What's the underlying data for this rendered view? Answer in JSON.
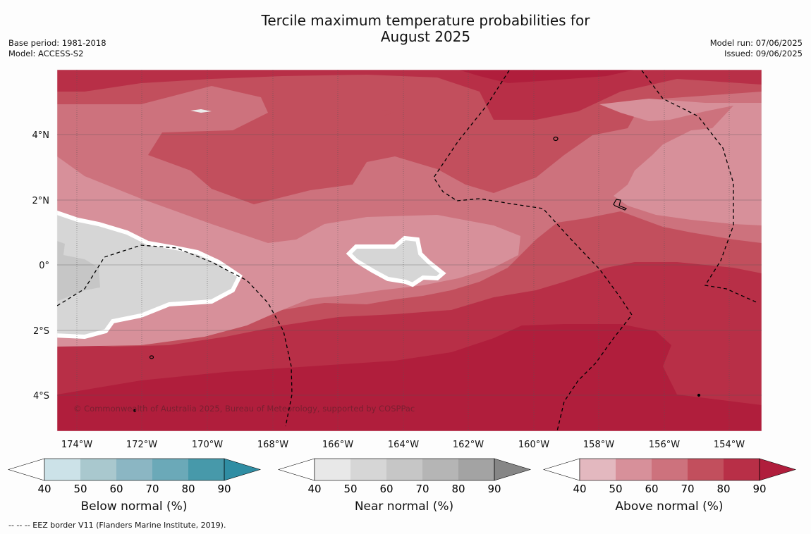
{
  "title_line1": "Tercile maximum temperature probabilities for",
  "title_line2": "August 2025",
  "base_period": "Base period: 1981-2018",
  "model": "Model: ACCESS-S2",
  "model_run": "Model run: 07/06/2025",
  "issued": "Issued: 09/06/2025",
  "copyright": "© Commonwealth of Australia 2025, Bureau of Meteorology, supported by COSPPac",
  "footer_note": "--  --  -- EEZ border V11 (Flanders Marine Institute, 2019).",
  "map": {
    "lon_labels": [
      "174°W",
      "172°W",
      "170°W",
      "168°W",
      "166°W",
      "164°W",
      "162°W",
      "160°W",
      "158°W",
      "156°W",
      "154°W"
    ],
    "lat_labels": [
      "4°N",
      "2°N",
      "0°",
      "2°S",
      "4°S"
    ]
  },
  "colorbars": [
    {
      "name": "below",
      "caption": "Below normal (%)",
      "ticks": [
        "40",
        "50",
        "60",
        "70",
        "80",
        "90"
      ],
      "colors": [
        "#ffffff",
        "#cce2e8",
        "#a9c8ce",
        "#8bb6c3",
        "#6ba9b8",
        "#4799aa",
        "#2f8da3"
      ]
    },
    {
      "name": "near",
      "caption": "Near normal (%)",
      "ticks": [
        "40",
        "50",
        "60",
        "70",
        "80",
        "90"
      ],
      "colors": [
        "#ffffff",
        "#e8e8e8",
        "#d6d6d6",
        "#c6c6c6",
        "#b5b5b5",
        "#a3a3a3",
        "#868686"
      ]
    },
    {
      "name": "above",
      "caption": "Above normal (%)",
      "ticks": [
        "40",
        "50",
        "60",
        "70",
        "80",
        "90"
      ],
      "colors": [
        "#ffffff",
        "#e3b8bf",
        "#d7909a",
        "#cd727d",
        "#c24f5d",
        "#b82f47",
        "#b01e3c"
      ]
    }
  ]
}
